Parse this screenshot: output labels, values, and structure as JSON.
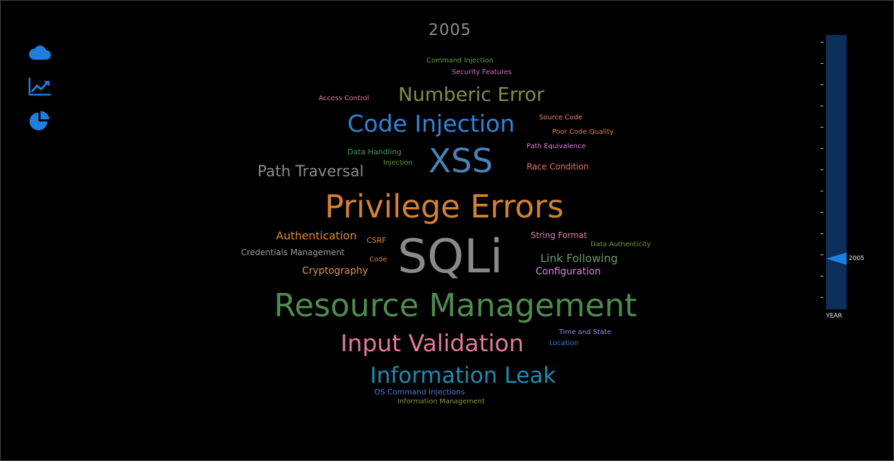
{
  "title": "2005",
  "nav": [
    {
      "icon": "cloud-icon"
    },
    {
      "icon": "line-chart-icon"
    },
    {
      "icon": "pie-chart-icon"
    }
  ],
  "accent_color": "#1f7fe0",
  "words": [
    {
      "text": "Command Injection",
      "color": "#6f9a3a"
    },
    {
      "text": "Security Features",
      "color": "#d773c2"
    },
    {
      "text": "Access Control",
      "color": "#e07b9c"
    },
    {
      "text": "Numberic Error",
      "color": "#8a8a4a"
    },
    {
      "text": "Code Injection",
      "color": "#2f84d8"
    },
    {
      "text": "Source Code",
      "color": "#e9866e"
    },
    {
      "text": "Poor Code Quality",
      "color": "#e27f3a"
    },
    {
      "text": "Data Handling",
      "color": "#4a9a6a"
    },
    {
      "text": "Path Equivalence",
      "color": "#d97ad9"
    },
    {
      "text": "Injection",
      "color": "#6aa03c"
    },
    {
      "text": "XSS",
      "color": "#4a82b4"
    },
    {
      "text": "Path Traversal",
      "color": "#8a8a8a"
    },
    {
      "text": "Race Condition",
      "color": "#e57a6a"
    },
    {
      "text": "Privilege Errors",
      "color": "#d4822e"
    },
    {
      "text": "Authentication",
      "color": "#e0862e"
    },
    {
      "text": "CSRF",
      "color": "#e08a30"
    },
    {
      "text": "String Format",
      "color": "#e07bb0"
    },
    {
      "text": "Data Authenticity",
      "color": "#6c9a3a"
    },
    {
      "text": "Credentials Management",
      "color": "#9a9a9a"
    },
    {
      "text": "Code",
      "color": "#e0853e"
    },
    {
      "text": "SQLi",
      "color": "#8a8a8a"
    },
    {
      "text": "Link Following",
      "color": "#6a9a6a"
    },
    {
      "text": "Cryptography",
      "color": "#d9925a"
    },
    {
      "text": "Configuration",
      "color": "#e080e8"
    },
    {
      "text": "Resource Management",
      "color": "#4f8a4f"
    },
    {
      "text": "Input Validation",
      "color": "#e07a9a"
    },
    {
      "text": "Time and State",
      "color": "#8a8ae8"
    },
    {
      "text": "Location",
      "color": "#3c7ad0"
    },
    {
      "text": "Information Leak",
      "color": "#1f8ab0"
    },
    {
      "text": "OS Command Injections",
      "color": "#4a7ae0"
    },
    {
      "text": "Information Management",
      "color": "#8a9a3a"
    }
  ],
  "slider": {
    "selected_label": "2005",
    "axis_label": "YEAR",
    "track_color": "#0b2f5a",
    "tick_count": 13,
    "selected_index": 10
  }
}
